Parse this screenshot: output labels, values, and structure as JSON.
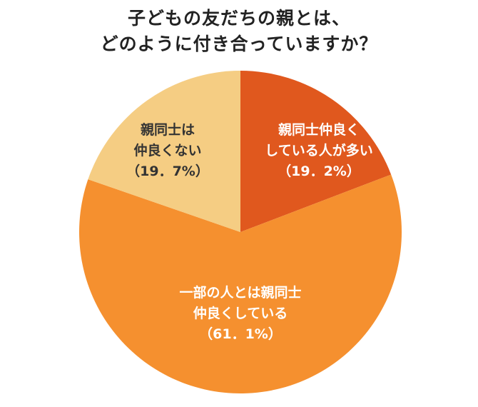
{
  "title": {
    "line1": "子どもの友だちの親とは、",
    "line2": "どのように付き合っていますか？"
  },
  "colors": {
    "slice_a": "#e0581e",
    "slice_b": "#f5902f",
    "slice_c": "#f5cd83",
    "text_dark": "#333333",
    "text_light": "#ffffff"
  },
  "chart_data": {
    "type": "pie",
    "title": "子どもの友だちの親とは、どのように付き合っていますか？",
    "slices": [
      {
        "label_lines": [
          "親同士仲良く",
          "している人が多い"
        ],
        "value_label": "（19．2%）",
        "value": 19.2,
        "color": "#e0581e",
        "text_color": "#ffffff"
      },
      {
        "label_lines": [
          "一部の人とは親同士",
          "仲良くしている"
        ],
        "value_label": "（61．1%）",
        "value": 61.1,
        "color": "#f5902f",
        "text_color": "#ffffff"
      },
      {
        "label_lines": [
          "親同士は",
          "仲良くない"
        ],
        "value_label": "（19．7%）",
        "value": 19.7,
        "color": "#f5cd83",
        "text_color": "#333333"
      }
    ]
  }
}
